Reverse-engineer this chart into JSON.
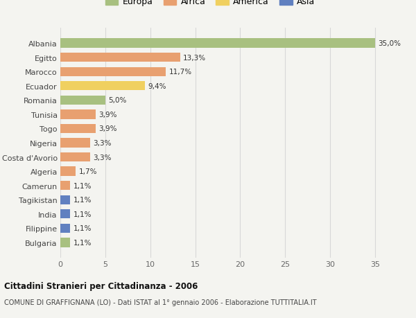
{
  "countries": [
    "Albania",
    "Egitto",
    "Marocco",
    "Ecuador",
    "Romania",
    "Tunisia",
    "Togo",
    "Nigeria",
    "Costa d'Avorio",
    "Algeria",
    "Camerun",
    "Tagikistan",
    "India",
    "Filippine",
    "Bulgaria"
  ],
  "values": [
    35.0,
    13.3,
    11.7,
    9.4,
    5.0,
    3.9,
    3.9,
    3.3,
    3.3,
    1.7,
    1.1,
    1.1,
    1.1,
    1.1,
    1.1
  ],
  "labels": [
    "35,0%",
    "13,3%",
    "11,7%",
    "9,4%",
    "5,0%",
    "3,9%",
    "3,9%",
    "3,3%",
    "3,3%",
    "1,7%",
    "1,1%",
    "1,1%",
    "1,1%",
    "1,1%",
    "1,1%"
  ],
  "continent": [
    "Europa",
    "Africa",
    "Africa",
    "America",
    "Europa",
    "Africa",
    "Africa",
    "Africa",
    "Africa",
    "Africa",
    "Africa",
    "Asia",
    "Asia",
    "Asia",
    "Europa"
  ],
  "colors": {
    "Europa": "#a8c080",
    "Africa": "#e8a070",
    "America": "#f0d060",
    "Asia": "#6080c0"
  },
  "xlim": [
    0,
    37
  ],
  "xticks": [
    0,
    5,
    10,
    15,
    20,
    25,
    30,
    35
  ],
  "title1": "Cittadini Stranieri per Cittadinanza - 2006",
  "title2": "COMUNE DI GRAFFIGNANA (LO) - Dati ISTAT al 1° gennaio 2006 - Elaborazione TUTTITALIA.IT",
  "background_color": "#f4f4f0",
  "plot_bg_color": "#f4f4f0",
  "bar_height": 0.65,
  "grid_color": "#d8d8d8",
  "legend_order": [
    "Europa",
    "Africa",
    "America",
    "Asia"
  ]
}
